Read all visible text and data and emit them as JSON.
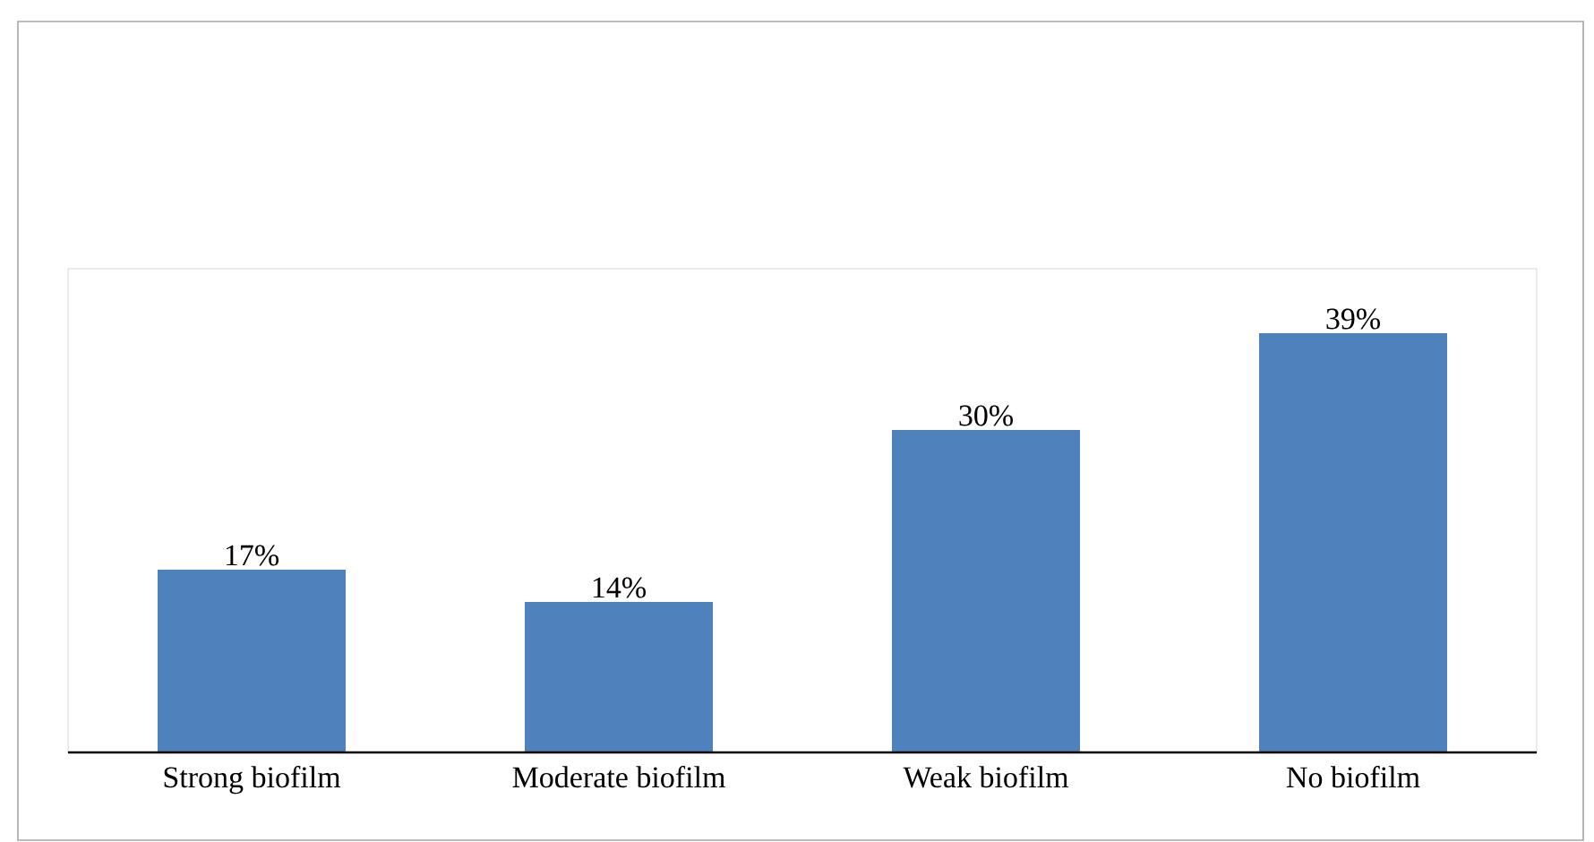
{
  "chart_data": {
    "type": "bar",
    "categories": [
      "Strong biofilm",
      "Moderate biofilm",
      "Weak biofilm",
      "No biofilm"
    ],
    "values": [
      17,
      14,
      30,
      39
    ],
    "value_labels": [
      "17%",
      "14%",
      "30%",
      "39%"
    ],
    "color": "#4f81bd",
    "ylim": [
      0,
      45
    ],
    "tick_labels": "x"
  }
}
